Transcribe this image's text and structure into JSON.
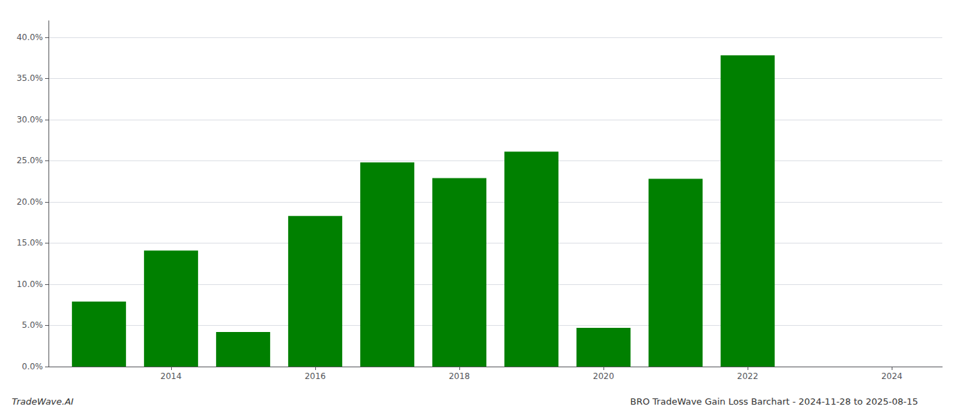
{
  "chart_data": {
    "type": "bar",
    "title": "BRO TradeWave Gain Loss Barchart - 2024-11-28 to 2025-08-15",
    "annotations": [
      "TradeWave.AI"
    ],
    "x": [
      2013,
      2014,
      2015,
      2016,
      2017,
      2018,
      2019,
      2020,
      2021,
      2022
    ],
    "values": [
      0.079,
      0.141,
      0.042,
      0.183,
      0.248,
      0.229,
      0.261,
      0.047,
      0.228,
      0.378
    ],
    "color": "#008000",
    "xlim": [
      2012.3,
      2024.7
    ],
    "xticks": [
      2014,
      2016,
      2018,
      2020,
      2022,
      2024
    ],
    "ylim": [
      0,
      0.42
    ],
    "yticks": [
      {
        "value": 0.0,
        "label": "0.0%"
      },
      {
        "value": 0.05,
        "label": "5.0%"
      },
      {
        "value": 0.1,
        "label": "10.0%"
      },
      {
        "value": 0.15,
        "label": "15.0%"
      },
      {
        "value": 0.2,
        "label": "20.0%"
      },
      {
        "value": 0.25,
        "label": "25.0%"
      },
      {
        "value": 0.3,
        "label": "30.0%"
      },
      {
        "value": 0.35,
        "label": "35.0%"
      },
      {
        "value": 0.4,
        "label": "40.0%"
      }
    ],
    "grid": true
  }
}
